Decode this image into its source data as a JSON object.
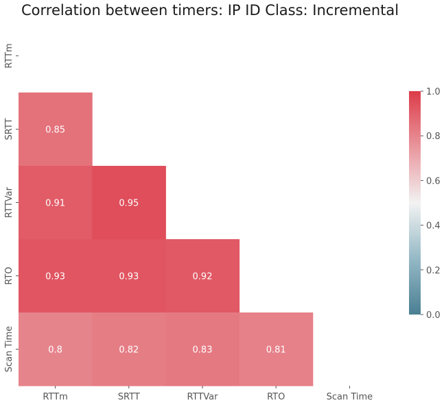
{
  "chart_data": {
    "type": "heatmap",
    "title": "Correlation between timers: IP ID Class: Incremental",
    "rows": [
      "RTTm",
      "SRTT",
      "RTTVar",
      "RTO",
      "Scan Time"
    ],
    "cols": [
      "RTTm",
      "SRTT",
      "RTTVar",
      "RTO",
      "Scan Time"
    ],
    "mask": "upper-triangle-including-diagonal",
    "cells": [
      {
        "row": "SRTT",
        "col": "RTTm",
        "value": 0.85,
        "label": "0.85"
      },
      {
        "row": "RTTVar",
        "col": "RTTm",
        "value": 0.91,
        "label": "0.91"
      },
      {
        "row": "RTTVar",
        "col": "SRTT",
        "value": 0.95,
        "label": "0.95"
      },
      {
        "row": "RTO",
        "col": "RTTm",
        "value": 0.93,
        "label": "0.93"
      },
      {
        "row": "RTO",
        "col": "SRTT",
        "value": 0.93,
        "label": "0.93"
      },
      {
        "row": "RTO",
        "col": "RTTVar",
        "value": 0.92,
        "label": "0.92"
      },
      {
        "row": "Scan Time",
        "col": "RTTm",
        "value": 0.8,
        "label": "0.8"
      },
      {
        "row": "Scan Time",
        "col": "SRTT",
        "value": 0.82,
        "label": "0.82"
      },
      {
        "row": "Scan Time",
        "col": "RTTVar",
        "value": 0.83,
        "label": "0.83"
      },
      {
        "row": "Scan Time",
        "col": "RTO",
        "value": 0.81,
        "label": "0.81"
      }
    ],
    "colorbar": {
      "range": [
        0.0,
        1.0
      ],
      "ticks": [
        "0.0",
        "0.2",
        "0.4",
        "0.6",
        "0.8",
        "1.0"
      ],
      "tick_values": [
        0.0,
        0.2,
        0.4,
        0.6,
        0.8,
        1.0
      ],
      "colormap": "diverging teal-white-red",
      "stops": [
        {
          "value": 0.0,
          "color": "#4a7f93"
        },
        {
          "value": 0.25,
          "color": "#95b9c6"
        },
        {
          "value": 0.5,
          "color": "#f2f2f2"
        },
        {
          "value": 0.75,
          "color": "#e9969d"
        },
        {
          "value": 1.0,
          "color": "#dc3c49"
        }
      ]
    },
    "xlabel": "",
    "ylabel": "",
    "grid": false
  },
  "colors": {
    "text": "#555555",
    "annotation": "#ffffff",
    "title": "#1a1a1a"
  }
}
